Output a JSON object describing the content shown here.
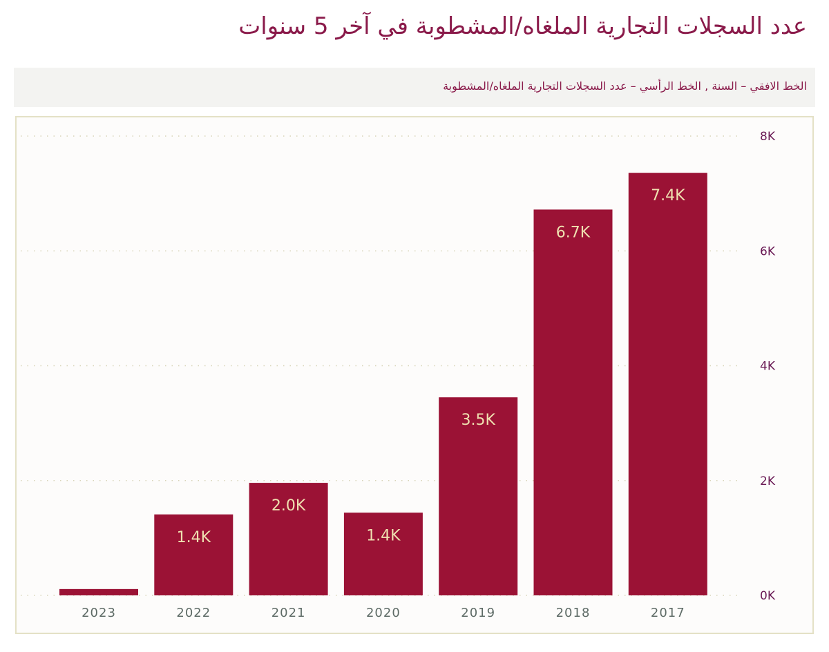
{
  "title": "عدد السجلات التجارية الملغاه/المشطوبة في آخر 5 سنوات",
  "subtitle": "الخط الافقي – السنة ,  الخط الرأسي – عدد السجلات التجارية الملغاه/المشطوبة",
  "chart_data": {
    "type": "bar",
    "categories": [
      "2023",
      "2022",
      "2021",
      "2020",
      "2019",
      "2018",
      "2017"
    ],
    "values": [
      0.11,
      1.41,
      1.96,
      1.44,
      3.45,
      6.72,
      7.36
    ],
    "value_unit": "K",
    "data_labels": [
      "",
      "1.4K",
      "2.0K",
      "1.4K",
      "3.5K",
      "6.7K",
      "7.4K"
    ],
    "yticks": [
      "0K",
      "2K",
      "4K",
      "6K",
      "8K"
    ],
    "ylim": [
      0,
      8
    ],
    "y_axis_position": "right",
    "grid": "dotted horizontal",
    "bar_color": "#9b1235",
    "label_color": "#efe0b0",
    "xlabel": "",
    "ylabel": ""
  }
}
